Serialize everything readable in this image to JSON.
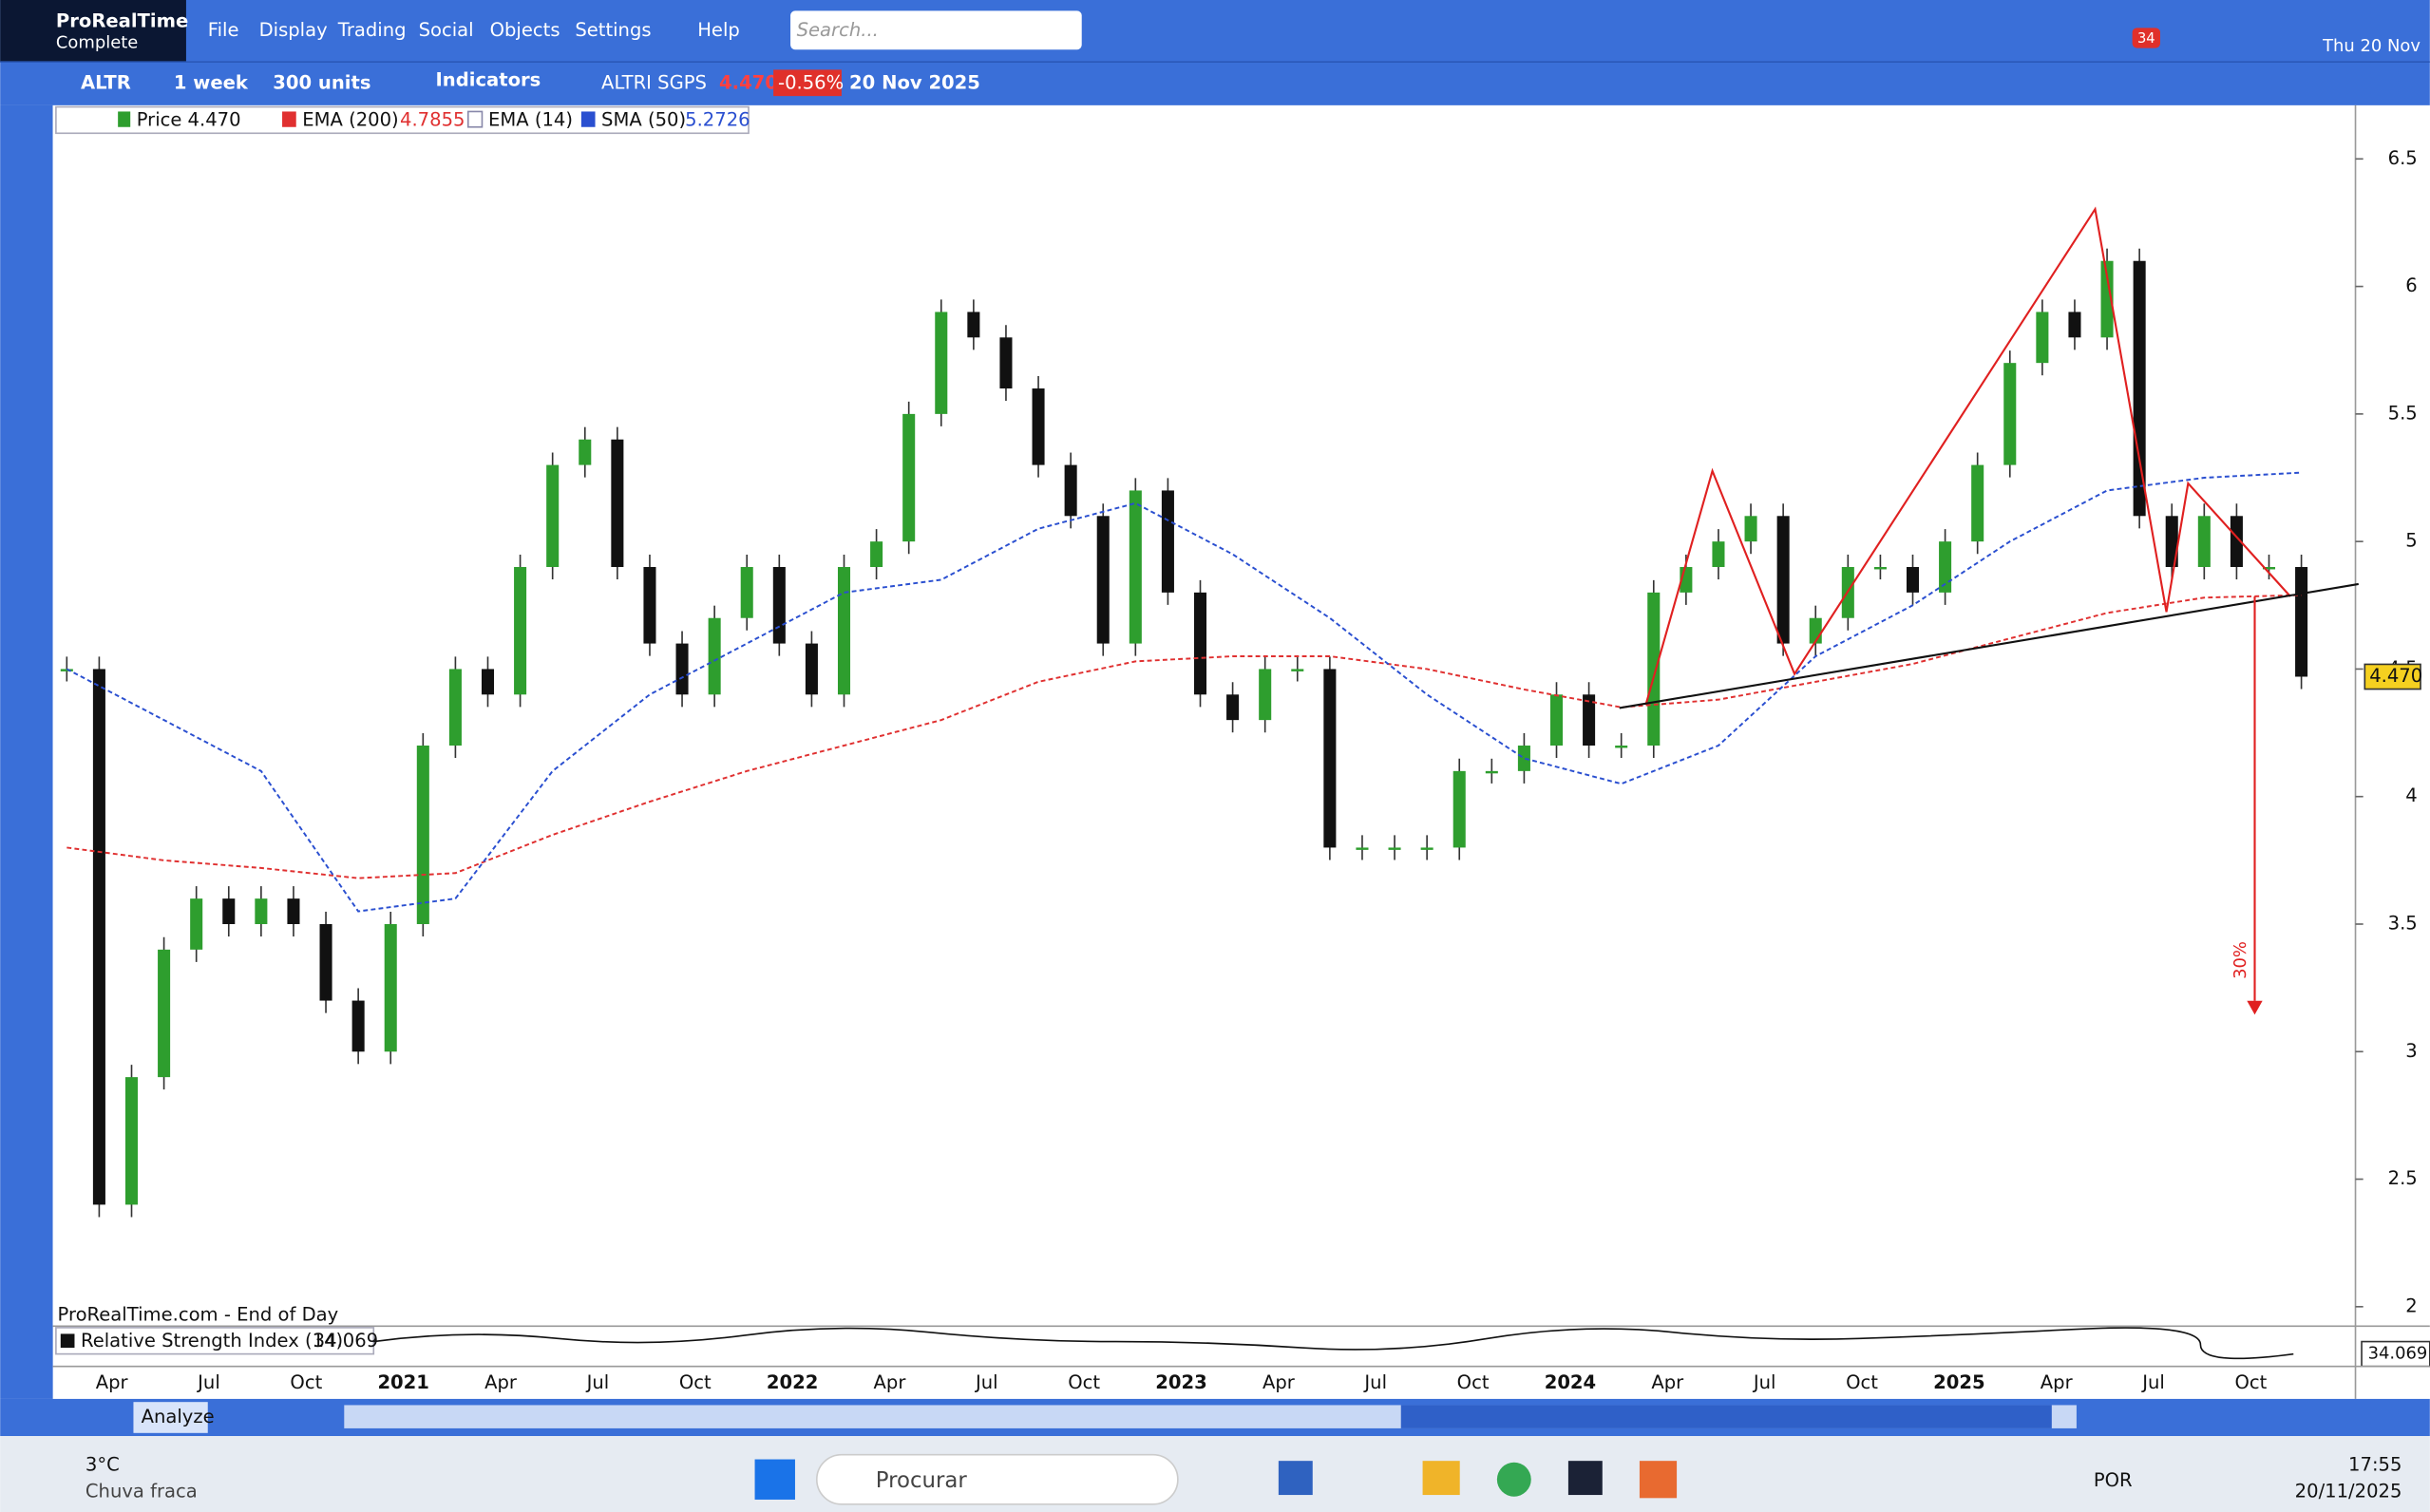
{
  "app": {
    "name": "ProRealTime",
    "edition": "Complete"
  },
  "menu": [
    "File",
    "Display",
    "Trading",
    "Social",
    "Objects",
    "Settings",
    "Help"
  ],
  "search_placeholder": "Search...",
  "notification_count": 34,
  "date_top": "Thu 20 Nov",
  "toolbar": {
    "ticker": "ALTR",
    "period": "1 week",
    "units": "300 units",
    "indicators": "Indicators",
    "instrument": "ALTRI SGPS",
    "last": "4.470",
    "change": "-0.56%",
    "date": "20 Nov 2025"
  },
  "legend": [
    {
      "name": "Price",
      "value": "4.470"
    },
    {
      "name": "EMA (200)",
      "value": "4.7855"
    },
    {
      "name": "EMA (14)"
    },
    {
      "name": "SMA (50)",
      "value": "5.2726"
    }
  ],
  "chart_data": {
    "type": "candlestick",
    "x_labels": [
      "Apr",
      "Jul",
      "Oct",
      "2021",
      "Apr",
      "Jul",
      "Oct",
      "2022",
      "Apr",
      "Jul",
      "Oct",
      "2023",
      "Apr",
      "Jul",
      "Oct",
      "2024",
      "Apr",
      "Jul",
      "Oct",
      "2025",
      "Apr",
      "Jul",
      "Oct"
    ],
    "values": [
      4.5,
      2.4,
      2.9,
      3.4,
      3.6,
      3.5,
      3.6,
      3.5,
      3.2,
      3.0,
      3.5,
      4.2,
      4.5,
      4.4,
      4.9,
      5.3,
      5.4,
      4.9,
      4.6,
      4.4,
      4.7,
      4.9,
      4.6,
      4.4,
      4.9,
      5.0,
      5.5,
      5.9,
      5.8,
      5.6,
      5.3,
      5.1,
      4.6,
      5.2,
      4.8,
      4.4,
      4.3,
      4.5,
      4.5,
      3.8,
      3.8,
      3.8,
      3.8,
      4.1,
      4.1,
      4.2,
      4.4,
      4.2,
      4.2,
      4.8,
      4.9,
      5.0,
      5.1,
      4.6,
      4.7,
      4.9,
      4.9,
      4.8,
      5.0,
      5.3,
      5.7,
      5.9,
      5.8,
      6.1,
      5.1,
      4.9,
      5.1,
      4.9,
      4.9,
      4.47
    ],
    "up_color": "#2e9e2e",
    "down_color": "#111111",
    "series": [
      {
        "name": "EMA (200)",
        "color": "#e03030",
        "values": [
          3.8,
          3.75,
          3.72,
          3.68,
          3.7,
          3.85,
          3.98,
          4.1,
          4.2,
          4.3,
          4.45,
          4.53,
          4.55,
          4.55,
          4.5,
          4.42,
          4.35,
          4.38,
          4.45,
          4.52,
          4.62,
          4.72,
          4.78,
          4.79
        ]
      },
      {
        "name": "SMA (50)",
        "color": "#2a4fd0",
        "values": [
          4.5,
          4.3,
          4.1,
          3.55,
          3.6,
          4.1,
          4.4,
          4.6,
          4.8,
          4.85,
          5.05,
          5.15,
          4.95,
          4.7,
          4.4,
          4.15,
          4.05,
          4.2,
          4.55,
          4.75,
          5.0,
          5.2,
          5.25,
          5.27
        ]
      }
    ],
    "ylim": [
      1.93,
      6.71
    ],
    "yticks": [
      2,
      2.5,
      3,
      3.5,
      4,
      4.5,
      5,
      5.5,
      6,
      6.5
    ],
    "annotation": "30%"
  },
  "footer_source": "ProRealTime.com - End of Day",
  "rsi": {
    "label": "Relative Strength Index (14)",
    "value": "34.069"
  },
  "analyze": "Analyze",
  "taskbar": {
    "weather_temp": "3°C",
    "weather_desc": "Chuva fraca",
    "search": "Procurar",
    "lang": "POR",
    "time": "17:55",
    "date": "20/11/2025"
  }
}
